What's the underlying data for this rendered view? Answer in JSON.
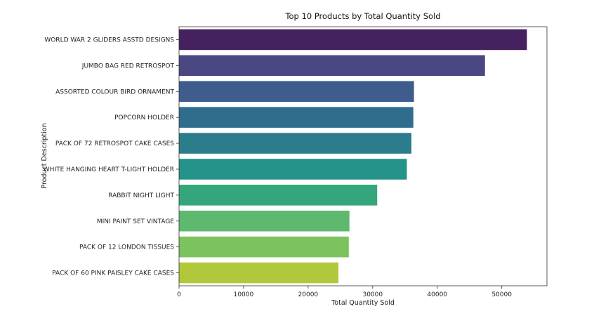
{
  "chart_data": {
    "type": "bar",
    "orientation": "horizontal",
    "title": "Top 10 Products by Total Quantity Sold",
    "xlabel": "Total Quantity Sold",
    "ylabel": "Product Description",
    "xlim": [
      0,
      57000
    ],
    "xticks": [
      0,
      10000,
      20000,
      30000,
      40000,
      50000
    ],
    "xtick_labels": [
      "0",
      "10000",
      "20000",
      "30000",
      "40000",
      "50000"
    ],
    "grid": false,
    "categories": [
      "WORLD WAR 2 GLIDERS ASSTD DESIGNS",
      "JUMBO BAG RED RETROSPOT",
      "ASSORTED COLOUR BIRD ORNAMENT",
      "POPCORN HOLDER",
      "PACK OF 72 RETROSPOT CAKE CASES",
      "WHITE HANGING HEART T-LIGHT HOLDER",
      "RABBIT NIGHT LIGHT",
      "MINI PAINT SET VINTAGE",
      "PACK OF 12 LONDON TISSUES",
      "PACK OF 60 PINK PAISLEY CAKE CASES"
    ],
    "values": [
      53900,
      47400,
      36400,
      36300,
      36000,
      35300,
      30700,
      26400,
      26300,
      24700
    ],
    "colors": [
      "#46215f",
      "#4a4783",
      "#3e5d8c",
      "#2f6d8e",
      "#2b7d8c",
      "#25938a",
      "#34a67c",
      "#5eb96f",
      "#7bc35c",
      "#b1c83a"
    ]
  }
}
